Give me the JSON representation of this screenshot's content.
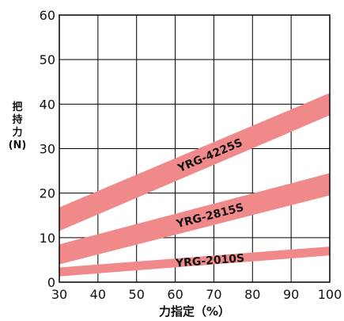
{
  "chart_data": {
    "type": "area",
    "title": "",
    "xlabel": "力指定（%）",
    "ylabel_lines": [
      "把",
      "持",
      "力",
      "(N)"
    ],
    "xlim": [
      30,
      100
    ],
    "ylim": [
      0,
      60
    ],
    "x_ticks": [
      30,
      40,
      50,
      60,
      70,
      80,
      90,
      100
    ],
    "y_ticks": [
      0,
      10,
      20,
      30,
      40,
      50,
      60
    ],
    "grid": true,
    "colors": {
      "band": "#f08a8a",
      "grid": "#000000",
      "axis": "#000000"
    },
    "series": [
      {
        "name": "YRG-4225S",
        "x": [
          30,
          100
        ],
        "lower": [
          11.5,
          37.5
        ],
        "upper": [
          16.8,
          42.5
        ],
        "label_x": 69
      },
      {
        "name": "YRG-2815S",
        "x": [
          30,
          100
        ],
        "lower": [
          4.0,
          19.5
        ],
        "upper": [
          8.5,
          24.5
        ],
        "label_x": 69
      },
      {
        "name": "YRG-2010S",
        "x": [
          30,
          100
        ],
        "lower": [
          1.3,
          6.0
        ],
        "upper": [
          3.3,
          8.0
        ],
        "label_x": 69
      }
    ]
  }
}
